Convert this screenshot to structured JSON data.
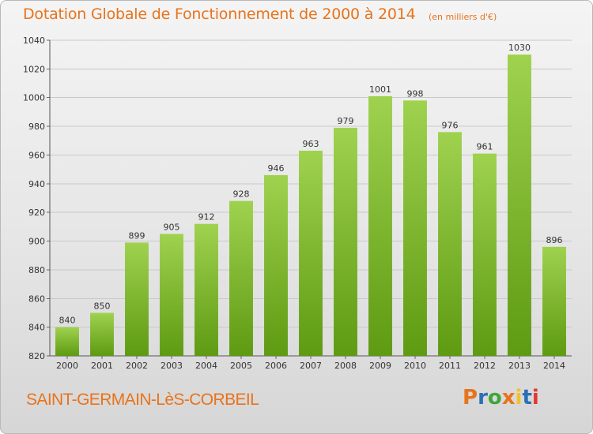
{
  "header": {
    "title": "Dotation Globale de Fonctionnement de 2000 à 2014",
    "subtitle": "(en milliers d'€)"
  },
  "footer": {
    "commune": "SAINT-GERMAIN-LèS-CORBEIL",
    "logo_text": "Proxiti"
  },
  "colors": {
    "title": "#e8731c",
    "bar_top": "#9fd24f",
    "bar_bottom": "#5e9a12",
    "logo_letters": [
      "#e8731c",
      "#2b6fb6",
      "#3fa53a",
      "#e8731c",
      "#f2c12e",
      "#2b6fb6",
      "#e2382f"
    ]
  },
  "chart_data": {
    "type": "bar",
    "categories": [
      "2000",
      "2001",
      "2002",
      "2003",
      "2004",
      "2005",
      "2006",
      "2007",
      "2008",
      "2009",
      "2010",
      "2011",
      "2012",
      "2013",
      "2014"
    ],
    "values": [
      840,
      850,
      899,
      905,
      912,
      928,
      946,
      963,
      979,
      1001,
      998,
      976,
      961,
      1030,
      896
    ],
    "title": "Dotation Globale de Fonctionnement de 2000 à 2014",
    "subtitle": "(en milliers d'€)",
    "xlabel": "",
    "ylabel": "",
    "ylim": [
      820,
      1040
    ],
    "yticks": [
      820,
      840,
      860,
      880,
      900,
      920,
      940,
      960,
      980,
      1000,
      1020,
      1040
    ],
    "grid": true,
    "data_labels": true
  }
}
